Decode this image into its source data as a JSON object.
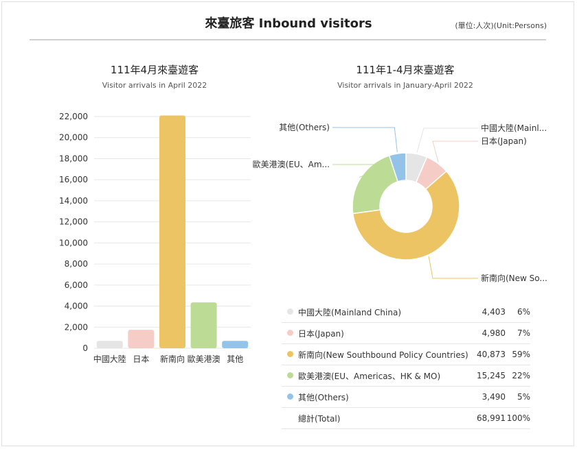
{
  "header": {
    "title": "來臺旅客 Inbound visitors",
    "unit": "(單位:人次)(Unit:Persons)"
  },
  "colors": {
    "mainland": "#e5e5e5",
    "japan": "#f5cdc6",
    "southbound": "#edc463",
    "eu": "#bcdb95",
    "others": "#94c3ea"
  },
  "chart_data": [
    {
      "type": "bar",
      "title": "111年4月來臺遊客",
      "subtitle": "Visitor arrivals in April 2022",
      "categories": [
        "中國大陸",
        "日本",
        "新南向",
        "歐美港澳",
        "其他"
      ],
      "values": [
        700,
        1750,
        22100,
        4350,
        700
      ],
      "ylim": [
        0,
        22000
      ],
      "yticks": [
        "0",
        "2,000",
        "4,000",
        "6,000",
        "8,000",
        "10,000",
        "12,000",
        "14,000",
        "16,000",
        "18,000",
        "20,000",
        "22,000"
      ],
      "grid": true
    },
    {
      "type": "pie",
      "title": "111年1-4月來臺遊客",
      "subtitle": "Visitor arrivals in January-April 2022",
      "donut": true,
      "slices": [
        {
          "label": "中國大陸(Mainl...",
          "value": 4403
        },
        {
          "label": "日本(Japan)",
          "value": 4980
        },
        {
          "label": "新南向(New So...",
          "value": 40873
        },
        {
          "label": "歐美港澳(EU、Am...",
          "value": 15245
        },
        {
          "label": "其他(Others)",
          "value": 3490
        }
      ]
    }
  ],
  "legend": {
    "rows": [
      {
        "name": "中國大陸(Mainland China)",
        "value": "4,403",
        "pct": "6%"
      },
      {
        "name": "日本(Japan)",
        "value": "4,980",
        "pct": "7%"
      },
      {
        "name": "新南向(New Southbound Policy Countries)",
        "value": "40,873",
        "pct": "59%"
      },
      {
        "name": "歐美港澳(EU、Americas、HK & MO)",
        "value": "15,245",
        "pct": "22%"
      },
      {
        "name": "其他(Others)",
        "value": "3,490",
        "pct": "5%"
      }
    ],
    "total": {
      "name": "總計(Total)",
      "value": "68,991",
      "pct": "100%"
    }
  }
}
